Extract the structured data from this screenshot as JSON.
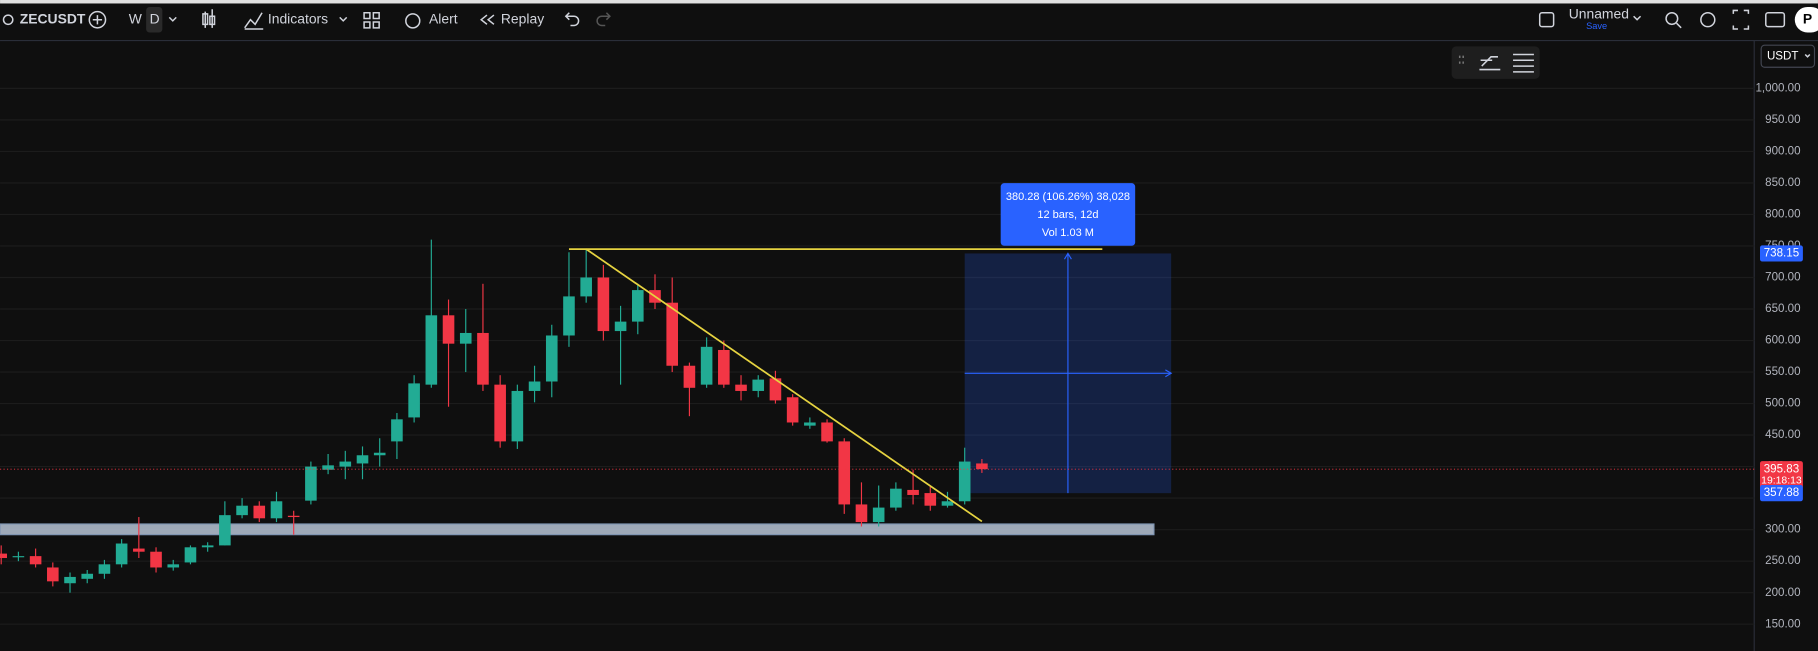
{
  "toolbar": {
    "symbol": "ZECUSDT",
    "intervals": [
      "W",
      "D"
    ],
    "indicators": "Indicators",
    "alert": "Alert",
    "replay": "Replay",
    "layout_name": "Unnamed",
    "save": "Save",
    "publish": "P"
  },
  "chart_data": {
    "type": "candlestick",
    "currency": "USDT",
    "ylim": [
      107.5,
      1075.8
    ],
    "yticks": [
      {
        "value": 1000,
        "label": "1,000.00"
      },
      {
        "value": 950,
        "label": "950.00"
      },
      {
        "value": 900,
        "label": "900.00"
      },
      {
        "value": 850,
        "label": "850.00"
      },
      {
        "value": 800,
        "label": "800.00"
      },
      {
        "value": 750,
        "label": "750.00"
      },
      {
        "value": 700,
        "label": "700.00"
      },
      {
        "value": 650,
        "label": "650.00"
      },
      {
        "value": 600,
        "label": "600.00"
      },
      {
        "value": 550,
        "label": "550.00"
      },
      {
        "value": 500,
        "label": "500.00"
      },
      {
        "value": 450,
        "label": "450.00"
      },
      {
        "value": 400,
        "label": "400.00"
      },
      {
        "value": 350,
        "label": "350.00"
      },
      {
        "value": 300,
        "label": "300.00"
      },
      {
        "value": 250,
        "label": "250.00"
      },
      {
        "value": 200,
        "label": "200.00"
      },
      {
        "value": 150,
        "label": "150.00"
      }
    ],
    "up_color": "#22ab94",
    "down_color": "#f23645",
    "open": [
      262,
      258,
      258,
      240,
      215,
      222,
      230,
      245,
      270,
      265,
      240,
      248,
      272,
      275,
      323,
      338,
      318,
      322,
      346,
      395,
      400,
      405,
      418,
      440,
      478,
      530,
      640,
      595,
      612,
      530,
      440,
      520,
      535,
      608,
      670,
      700,
      615,
      630,
      680,
      660,
      560,
      530,
      585,
      530,
      520,
      540,
      510,
      465,
      470,
      440,
      340,
      312,
      335,
      363,
      358,
      338,
      345,
      405
    ],
    "high": [
      275,
      265,
      270,
      248,
      232,
      236,
      252,
      285,
      320,
      272,
      252,
      275,
      280,
      345,
      350,
      345,
      360,
      330,
      408,
      420,
      425,
      432,
      445,
      485,
      545,
      760,
      665,
      650,
      690,
      545,
      530,
      560,
      625,
      740,
      745,
      720,
      655,
      690,
      705,
      700,
      565,
      605,
      600,
      545,
      545,
      552,
      515,
      478,
      475,
      445,
      375,
      370,
      375,
      395,
      370,
      360,
      430,
      412
    ],
    "low": [
      245,
      250,
      240,
      210,
      200,
      215,
      222,
      240,
      255,
      232,
      235,
      245,
      265,
      275,
      318,
      312,
      312,
      292,
      340,
      388,
      380,
      380,
      400,
      412,
      470,
      525,
      495,
      550,
      520,
      430,
      428,
      502,
      510,
      590,
      660,
      600,
      530,
      610,
      650,
      550,
      480,
      525,
      525,
      505,
      510,
      500,
      465,
      460,
      438,
      325,
      305,
      305,
      330,
      340,
      330,
      335,
      340,
      390
    ],
    "close": [
      255,
      258,
      245,
      218,
      225,
      230,
      245,
      278,
      265,
      240,
      245,
      272,
      275,
      323,
      338,
      318,
      345,
      320,
      400,
      402,
      408,
      418,
      422,
      475,
      532,
      640,
      595,
      612,
      530,
      440,
      520,
      535,
      608,
      670,
      700,
      615,
      630,
      680,
      660,
      560,
      525,
      590,
      530,
      520,
      538,
      505,
      470,
      470,
      440,
      340,
      312,
      335,
      365,
      355,
      338,
      345,
      408,
      396
    ],
    "last_price": 395.83,
    "countdown": "19:18:13",
    "measure": {
      "low": 357.88,
      "high": 738.15,
      "from_bar": 56,
      "to_bar": 68,
      "text": [
        "380.28 (106.26%) 38,028",
        "12 bars, 12d",
        "Vol 1.03 M"
      ]
    },
    "drawings": {
      "color": "#e6d340",
      "horizontal": {
        "price": 745,
        "from_bar": 33,
        "to_bar": 64
      },
      "trend": {
        "from_bar": 34,
        "from_price": 745,
        "to_bar": 57,
        "to_price": 313
      },
      "zone": {
        "low": 292,
        "high": 309,
        "to_bar": 67
      }
    }
  }
}
